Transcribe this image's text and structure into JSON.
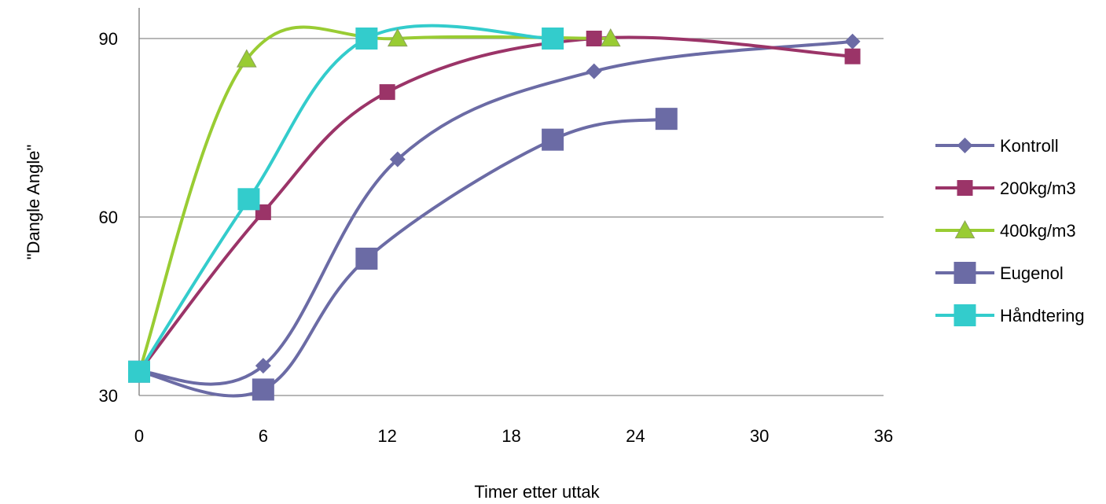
{
  "chart_data": {
    "type": "line",
    "title": "",
    "xlabel": "Timer etter uttak",
    "ylabel": "\"Dangle Angle\"",
    "xlim": [
      0,
      36
    ],
    "ylim": [
      30,
      90
    ],
    "xticks": [
      0,
      6,
      12,
      18,
      24,
      30,
      36
    ],
    "yticks": [
      30,
      60,
      90
    ],
    "grid": "horizontal",
    "legend_position": "right",
    "series": [
      {
        "name": "Kontroll",
        "color": "#6B6BA5",
        "marker": "diamond",
        "x": [
          0,
          6,
          12.5,
          22,
          34.5
        ],
        "y": [
          34,
          35,
          69.7,
          84.5,
          89.5
        ]
      },
      {
        "name": "200kg/m3",
        "color": "#9B3468",
        "marker": "square",
        "x": [
          0,
          6,
          12,
          22,
          34.5
        ],
        "y": [
          34,
          60.8,
          81,
          90,
          87
        ]
      },
      {
        "name": "400kg/m3",
        "color": "#99CC33",
        "marker": "triangle",
        "x": [
          0,
          5.2,
          12.5,
          22.8
        ],
        "y": [
          34,
          86.5,
          90,
          90
        ]
      },
      {
        "name": "Eugenol",
        "color": "#6B6BA5",
        "marker": "square-large",
        "x": [
          0,
          6,
          11,
          20,
          25.5
        ],
        "y": [
          34,
          31,
          53,
          73,
          76.5
        ]
      },
      {
        "name": "Håndtering",
        "color": "#33CCCC",
        "marker": "square-large",
        "x": [
          0,
          5.3,
          11,
          20
        ],
        "y": [
          34,
          63,
          90,
          90
        ]
      }
    ]
  }
}
